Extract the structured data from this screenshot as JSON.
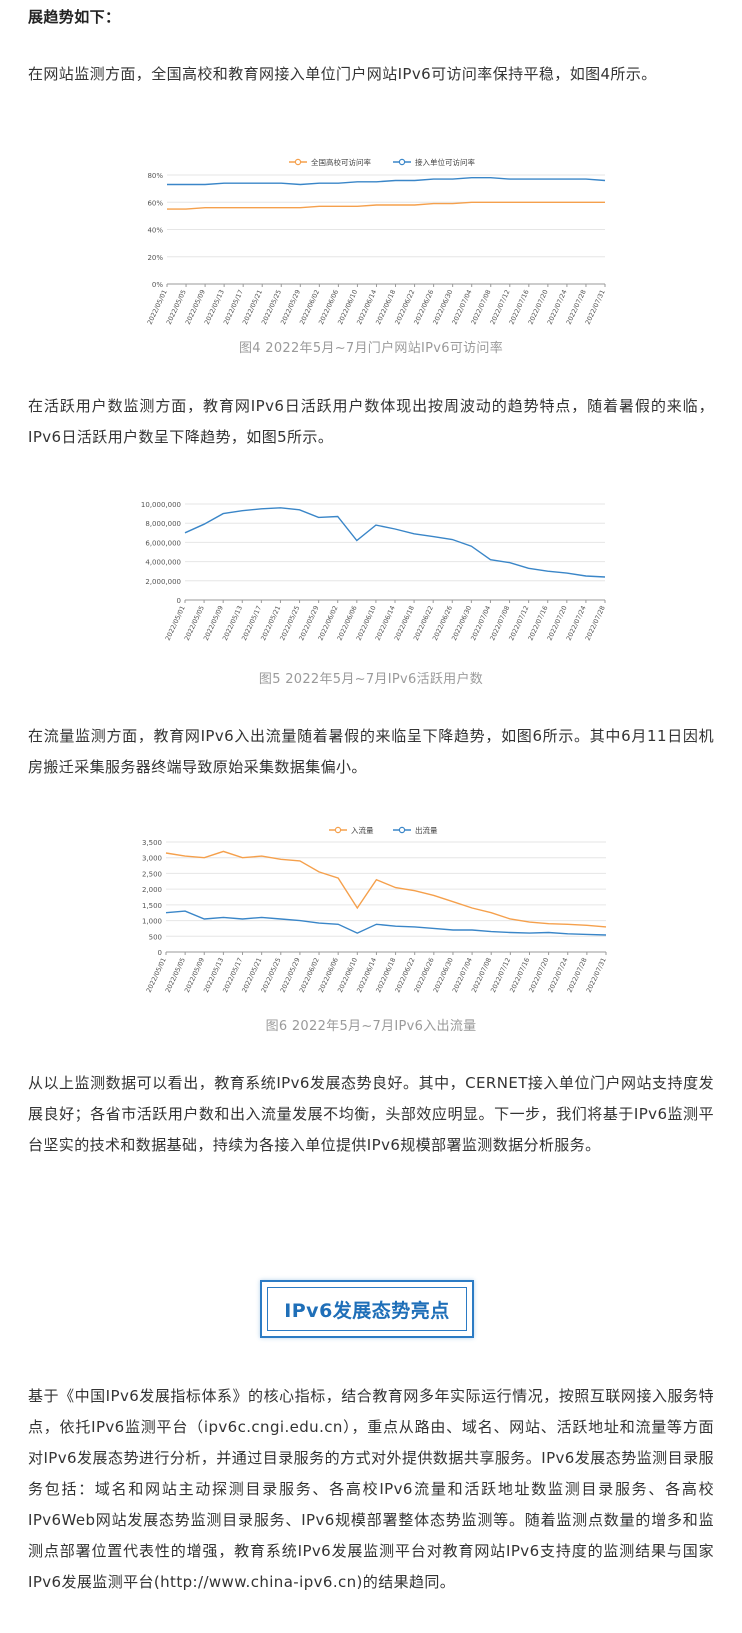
{
  "article": {
    "heading_fragment": "展趋势如下：",
    "para_website": "在网站监测方面，全国高校和教育网接入单位门户网站IPv6可访问率保持平稳，如图4所示。",
    "para_users": "在活跃用户数监测方面，教育网IPv6日活跃用户数体现出按周波动的趋势特点，随着暑假的来临，IPv6日活跃用户数呈下降趋势，如图5所示。",
    "para_traffic": "在流量监测方面，教育网IPv6入出流量随着暑假的来临呈下降趋势，如图6所示。其中6月11日因机房搬迁采集服务器终端导致原始采集数据集偏小。",
    "para_summary": "从以上监测数据可以看出，教育系统IPv6发展态势良好。其中，CERNET接入单位门户网站支持度发展良好；各省市活跃用户数和出入流量发展不均衡，头部效应明显。下一步，我们将基于IPv6监测平台坚实的技术和数据基础，持续为各接入单位提供IPv6规模部署监测数据分析服务。",
    "section_title": "IPv6发展态势亮点",
    "para_highlight": "基于《中国IPv6发展指标体系》的核心指标，结合教育网多年实际运行情况，按照互联网接入服务特点，依托IPv6监测平台（ipv6c.cngi.edu.cn），重点从路由、域名、网站、活跃地址和流量等方面对IPv6发展态势进行分析，并通过目录服务的方式对外提供数据共享服务。IPv6发展态势监测目录服务包括：域名和网站主动探测目录服务、各高校IPv6流量和活跃地址数监测目录服务、各高校IPv6Web网站发展态势监测目录服务、IPv6规模部署整体态势监测等。随着监测点数量的增多和监测点部署位置代表性的增强，教育系统IPv6发展监测平台对教育网站IPv6支持度的监测结果与国家IPv6发展监测平台(http://www.china-ipv6.cn)的结果趋同。"
  },
  "colors": {
    "orange": "#f5a04c",
    "blue": "#3a86c8",
    "axis": "#999999",
    "grid": "#e6e6e6"
  },
  "chart_data": [
    {
      "type": "line",
      "caption": "图4 2022年5月~7月门户网站IPv6可访问率",
      "legend_position": "top-center",
      "grid": "horizontal",
      "x": [
        "2022/05/01",
        "2022/05/05",
        "2022/05/09",
        "2022/05/13",
        "2022/05/17",
        "2022/05/21",
        "2022/05/25",
        "2022/05/29",
        "2022/06/02",
        "2022/06/06",
        "2022/06/10",
        "2022/06/14",
        "2022/06/18",
        "2022/06/22",
        "2022/06/26",
        "2022/06/30",
        "2022/07/04",
        "2022/07/08",
        "2022/07/12",
        "2022/07/16",
        "2022/07/20",
        "2022/07/24",
        "2022/07/28",
        "2022/07/31"
      ],
      "y_ticks": [
        "0%",
        "20%",
        "40%",
        "60%",
        "80%"
      ],
      "ylim": [
        0,
        80
      ],
      "series": [
        {
          "name": "全国高校可访问率",
          "color": "#f5a04c",
          "values": [
            55,
            55,
            56,
            56,
            56,
            56,
            56,
            56,
            57,
            57,
            57,
            58,
            58,
            58,
            59,
            59,
            60,
            60,
            60,
            60,
            60,
            60,
            60,
            60
          ]
        },
        {
          "name": "接入单位可访问率",
          "color": "#3a86c8",
          "values": [
            73,
            73,
            73,
            74,
            74,
            74,
            74,
            73,
            74,
            74,
            75,
            75,
            76,
            76,
            77,
            77,
            78,
            78,
            77,
            77,
            77,
            77,
            77,
            76
          ]
        }
      ]
    },
    {
      "type": "line",
      "caption": "图5 2022年5月~7月IPv6活跃用户数",
      "grid": "horizontal",
      "x": [
        "2022/05/01",
        "2022/05/05",
        "2022/05/09",
        "2022/05/13",
        "2022/05/17",
        "2022/05/21",
        "2022/05/25",
        "2022/05/29",
        "2022/06/02",
        "2022/06/06",
        "2022/06/10",
        "2022/06/14",
        "2022/06/18",
        "2022/06/22",
        "2022/06/26",
        "2022/06/30",
        "2022/07/04",
        "2022/07/08",
        "2022/07/12",
        "2022/07/16",
        "2022/07/20",
        "2022/07/24",
        "2022/07/28"
      ],
      "y_ticks": [
        "0",
        "2,000,000",
        "4,000,000",
        "6,000,000",
        "8,000,000",
        "10,000,000"
      ],
      "ylim": [
        0,
        10000000
      ],
      "series": [
        {
          "name": "",
          "color": "#3a86c8",
          "values": [
            7000000,
            7900000,
            9000000,
            9300000,
            9500000,
            9600000,
            9400000,
            8600000,
            8700000,
            6200000,
            7800000,
            7400000,
            6900000,
            6600000,
            6300000,
            5600000,
            4200000,
            3900000,
            3300000,
            3000000,
            2800000,
            2500000,
            2400000
          ]
        }
      ]
    },
    {
      "type": "line",
      "caption": "图6 2022年5月~7月IPv6入出流量",
      "legend_position": "top-center",
      "grid": "horizontal",
      "x": [
        "2022/05/01",
        "2022/05/05",
        "2022/05/09",
        "2022/05/13",
        "2022/05/17",
        "2022/05/21",
        "2022/05/25",
        "2022/05/29",
        "2022/06/02",
        "2022/06/06",
        "2022/06/10",
        "2022/06/14",
        "2022/06/18",
        "2022/06/22",
        "2022/06/26",
        "2022/06/30",
        "2022/07/04",
        "2022/07/08",
        "2022/07/12",
        "2022/07/16",
        "2022/07/20",
        "2022/07/24",
        "2022/07/28",
        "2022/07/31"
      ],
      "y_ticks": [
        "0",
        "500",
        "1,000",
        "1,500",
        "2,000",
        "2,500",
        "3,000",
        "3,500"
      ],
      "ylim": [
        0,
        3500
      ],
      "series": [
        {
          "name": "入流量",
          "color": "#f5a04c",
          "values": [
            3150,
            3050,
            3000,
            3200,
            3000,
            3050,
            2950,
            2900,
            2550,
            2350,
            1400,
            2300,
            2050,
            1950,
            1800,
            1600,
            1400,
            1250,
            1050,
            950,
            900,
            880,
            850,
            800
          ]
        },
        {
          "name": "出流量",
          "color": "#3a86c8",
          "values": [
            1250,
            1300,
            1050,
            1100,
            1050,
            1100,
            1050,
            1000,
            920,
            880,
            600,
            880,
            820,
            800,
            750,
            700,
            700,
            650,
            620,
            600,
            620,
            580,
            560,
            540
          ]
        }
      ]
    }
  ]
}
